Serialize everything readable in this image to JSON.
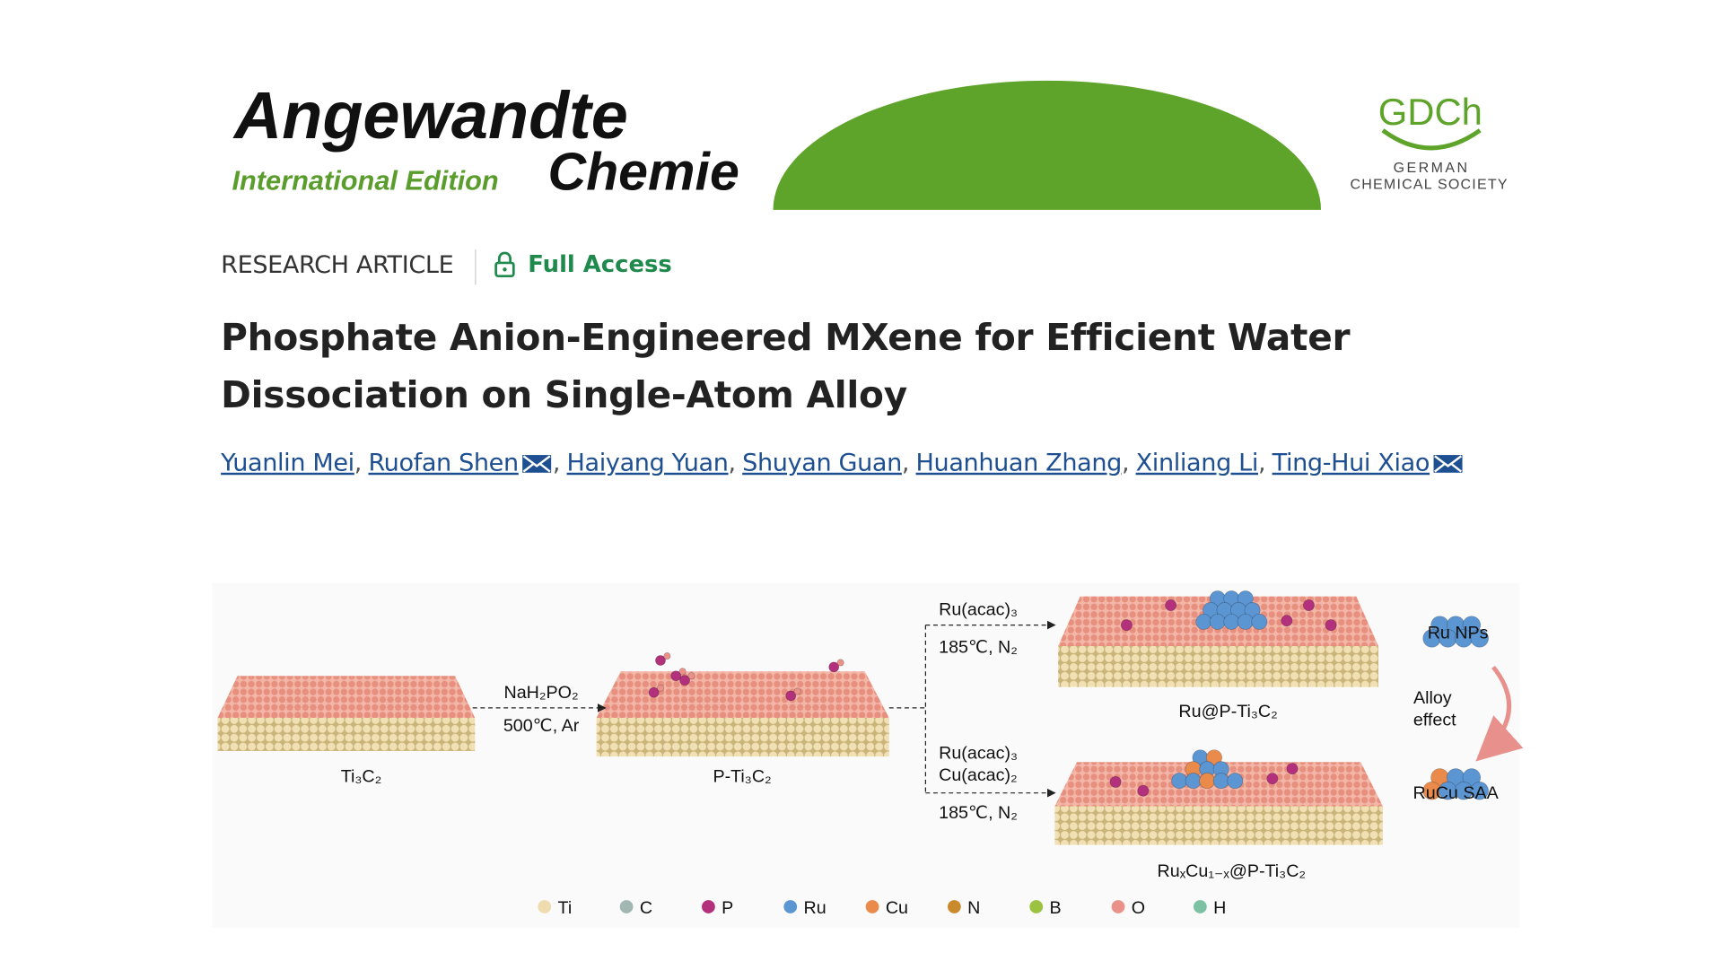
{
  "header": {
    "journal_title": "Angewandte",
    "journal_subtitle": "Chemie",
    "edition": "International Edition",
    "society_abbr": "GDCh",
    "society_name_line1": "GERMAN",
    "society_name_line2": "CHEMICAL SOCIETY"
  },
  "article": {
    "type": "RESEARCH ARTICLE",
    "access": "Full Access",
    "title_lines": [
      "Phosphate Anion-Engineered MXene for Efficient Water",
      "Dissociation on Single-Atom Alloy"
    ],
    "author_separator": ",",
    "authors": [
      {
        "name": "Yuanlin Mei",
        "email": false
      },
      {
        "name": "Ruofan Shen",
        "email": true
      },
      {
        "name": "Haiyang Yuan",
        "email": false
      },
      {
        "name": "Shuyan Guan",
        "email": false
      },
      {
        "name": "Huanhuan Zhang",
        "email": false
      },
      {
        "name": "Xinliang Li",
        "email": false
      },
      {
        "name": "Ting-Hui Xiao",
        "email": true
      }
    ]
  },
  "figure": {
    "labels": {
      "ti3c2": "Ti₃C₂",
      "reagent1": "NaH₂PO₂",
      "condition1": "500℃, Ar",
      "p_ti3c2": "P-Ti₃C₂",
      "reagent2": "Ru(acac)₃",
      "condition2": "185℃, N₂",
      "ru_p_ti3c2": "Ru@P-Ti₃C₂",
      "reagent3a": "Ru(acac)₃",
      "reagent3b": "Cu(acac)₂",
      "condition3": "185℃, N₂",
      "rucu_p_ti3c2": "RuₓCu₁₋ₓ@P-Ti₃C₂",
      "ru_nps": "Ru NPs",
      "alloy1": "Alloy",
      "alloy2": "effect",
      "rucu_saa": "RuCu SAA"
    },
    "legend": [
      {
        "label": "Ti",
        "color": "#efdcae"
      },
      {
        "label": "C",
        "color": "#a3b7b2"
      },
      {
        "label": "P",
        "color": "#b2307c"
      },
      {
        "label": "Ru",
        "color": "#5b95d2"
      },
      {
        "label": "Cu",
        "color": "#ea8b4c"
      },
      {
        "label": "N",
        "color": "#c88a2c"
      },
      {
        "label": "B",
        "color": "#9cc242"
      },
      {
        "label": "O",
        "color": "#ea928a"
      },
      {
        "label": "H",
        "color": "#7cc2a2"
      }
    ]
  }
}
